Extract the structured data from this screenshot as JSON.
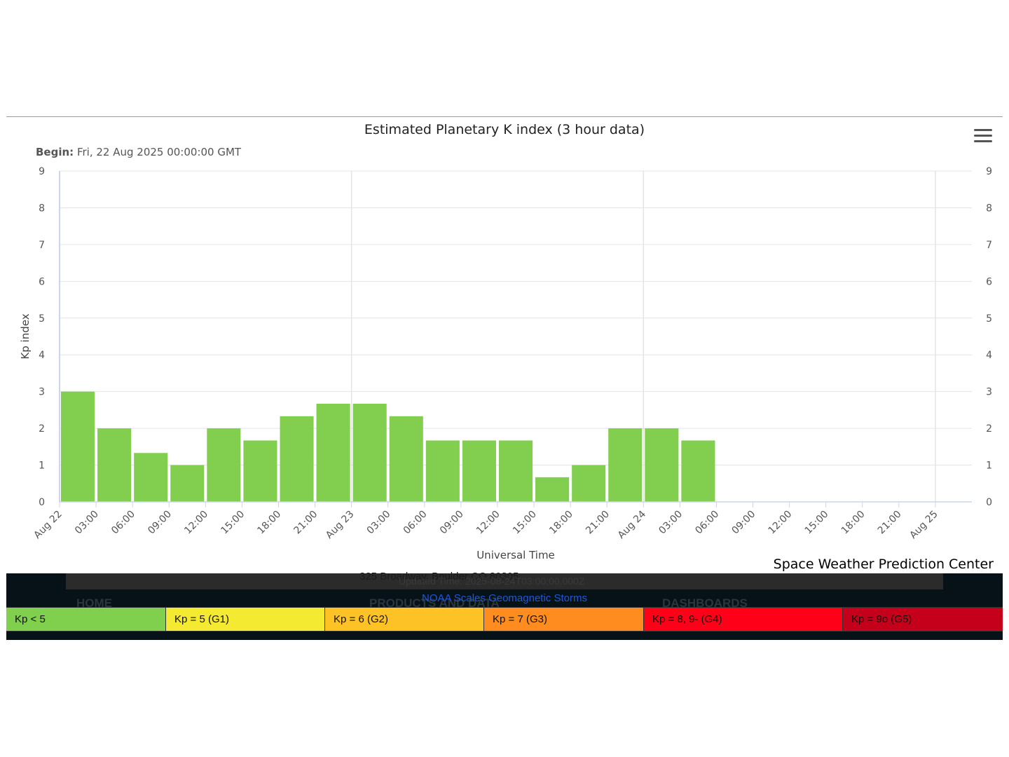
{
  "chart": {
    "title": "Estimated Planetary K index (3 hour data)",
    "begin_label": "Begin:",
    "begin_value": "Fri, 22 Aug 2025 00:00:00 GMT",
    "menu_icon": "hamburger-menu-icon",
    "credit": "Space Weather Prediction Center"
  },
  "chart_data": {
    "type": "bar",
    "title": "Estimated Planetary K index (3 hour data)",
    "xlabel": "Universal Time",
    "ylabel": "Kp index",
    "ylim": [
      0,
      9
    ],
    "y_ticks": [
      "0",
      "1",
      "2",
      "3",
      "4",
      "5",
      "6",
      "7",
      "8",
      "9"
    ],
    "right_axis_ticks": [
      "0",
      "1",
      "2",
      "3",
      "4",
      "5",
      "6",
      "7",
      "8",
      "9"
    ],
    "x_tick_labels": [
      "Aug 22",
      "03:00",
      "06:00",
      "09:00",
      "12:00",
      "15:00",
      "18:00",
      "21:00",
      "Aug 23",
      "03:00",
      "06:00",
      "09:00",
      "12:00",
      "15:00",
      "18:00",
      "21:00",
      "Aug 24",
      "03:00",
      "06:00",
      "09:00",
      "12:00",
      "15:00",
      "18:00",
      "21:00",
      "Aug 25"
    ],
    "x_range": [
      "Aug 22 00:00",
      "Aug 25 03:00"
    ],
    "interval_hours": 3,
    "grid": true,
    "bar_color": "#82cf4f",
    "values": [
      3.0,
      2.0,
      1.33,
      1.0,
      2.0,
      1.67,
      2.33,
      2.67,
      2.67,
      2.33,
      1.67,
      1.67,
      1.67,
      0.67,
      1.0,
      2.0,
      2.0,
      1.67
    ]
  },
  "footer": {
    "address": "325 Broadway, Boulder CO 80305",
    "updated": "Updated Time: 2025-08-24T03:00:00.000Z",
    "nav_home": "HOME",
    "nav_products": "PRODUCTS AND DATA",
    "nav_dashboards": "DASHBOARDS",
    "scales_link": "NOAA Scales Geomagnetic Storms"
  },
  "legend": [
    {
      "label": "Kp < 5",
      "color": "#80cf4d"
    },
    {
      "label": "Kp = 5 (G1)",
      "color": "#f4ea31"
    },
    {
      "label": "Kp = 6 (G2)",
      "color": "#fdc226"
    },
    {
      "label": "Kp = 7 (G3)",
      "color": "#fe8c1f"
    },
    {
      "label": "Kp = 8, 9- (G4)",
      "color": "#fe0017"
    },
    {
      "label": "Kp = 9o (G5)",
      "color": "#c5001a"
    }
  ]
}
